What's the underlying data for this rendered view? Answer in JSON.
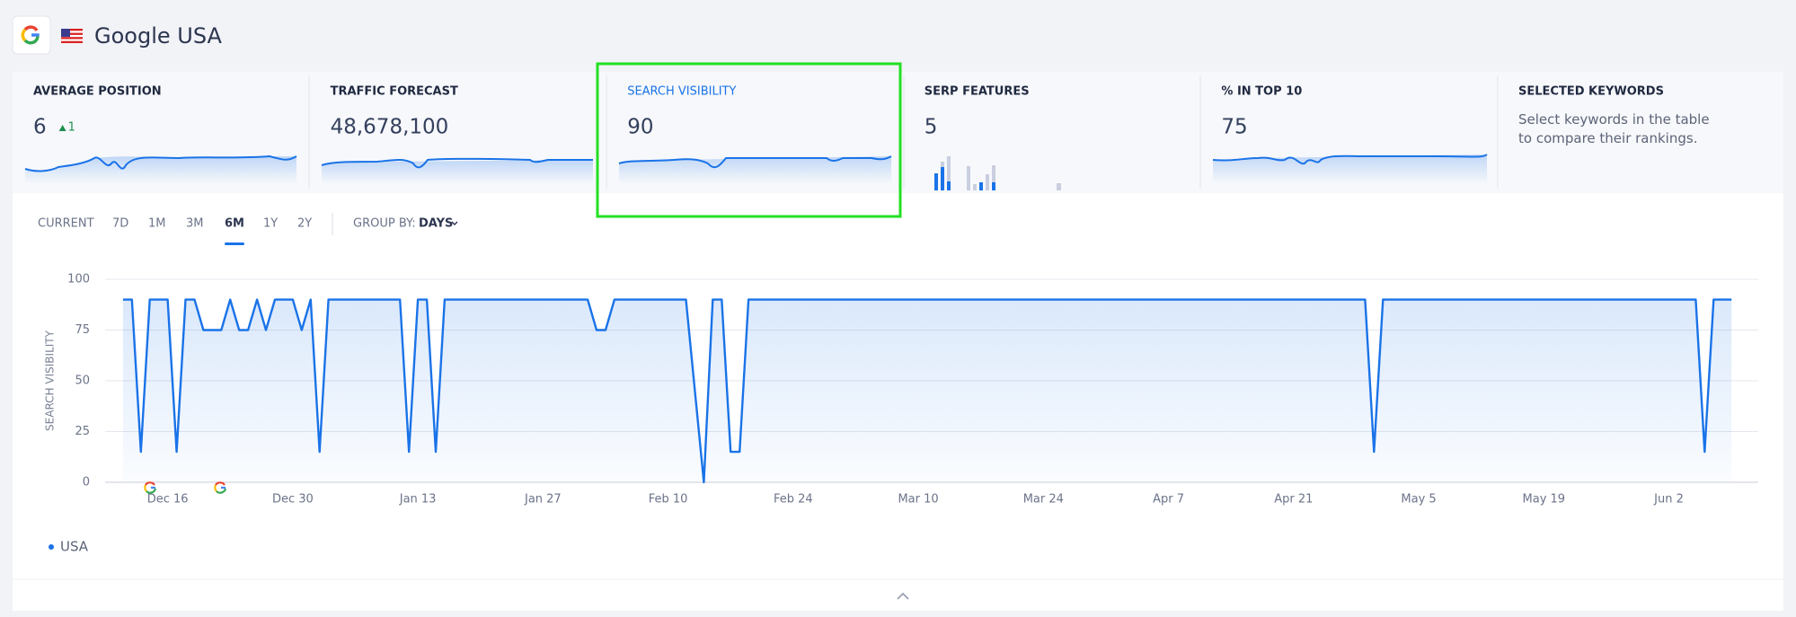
{
  "header": {
    "title": "Google USA"
  },
  "metrics": [
    {
      "label": "AVERAGE POSITION",
      "value": "6",
      "change": "1"
    },
    {
      "label": "TRAFFIC FORECAST",
      "value": "48,678,100"
    },
    {
      "label": "SEARCH VISIBILITY",
      "value": "90"
    },
    {
      "label": "SERP FEATURES",
      "value": "5"
    },
    {
      "label": "% IN TOP 10",
      "value": "75"
    },
    {
      "label": "SELECTED KEYWORDS",
      "text": "Select keywords in the table to compare their rankings."
    }
  ],
  "controls": {
    "periods": [
      "CURRENT",
      "7D",
      "1M",
      "3M",
      "6M",
      "1Y",
      "2Y"
    ],
    "active_period": "6M",
    "group_by_label": "GROUP BY:",
    "group_by": "DAYS"
  },
  "chart_data": {
    "type": "line",
    "y_label": "SEARCH VISIBILITY",
    "xlim": [
      "Dec 9",
      "Jun 12"
    ],
    "ylim": [
      0,
      100
    ],
    "yticks": [
      0,
      25,
      50,
      75,
      100
    ],
    "xticks": [
      "Dec 16",
      "Dec 30",
      "Jan 13",
      "Jan 27",
      "Feb 10",
      "Feb 24",
      "Mar 10",
      "Mar 24",
      "Apr 7",
      "Apr 21",
      "May 5",
      "May 19",
      "Jun 2"
    ],
    "grid": true,
    "series": [
      {
        "name": "USA",
        "color": "#1a73e8",
        "x": [
          "Dec 11",
          "Dec 12",
          "Dec 13",
          "Dec 14",
          "Dec 16",
          "Dec 17",
          "Dec 18",
          "Dec 19",
          "Dec 20",
          "Dec 22",
          "Dec 23",
          "Dec 24",
          "Dec 25",
          "Dec 26",
          "Dec 27",
          "Dec 28",
          "Dec 30",
          "Dec 31",
          "Jan 1",
          "Jan 2",
          "Jan 3",
          "Jan 11",
          "Jan 12",
          "Jan 13",
          "Jan 14",
          "Jan 15",
          "Jan 16",
          "Feb 1",
          "Feb 2",
          "Feb 3",
          "Feb 4",
          "Feb 12",
          "Feb 14",
          "Feb 15",
          "Feb 16",
          "Feb 17",
          "Feb 18",
          "Feb 19",
          "Apr 29",
          "Apr 30",
          "May 1",
          "Jun 5",
          "Jun 6",
          "Jun 7",
          "Jun 9"
        ],
        "values": [
          90,
          90,
          15,
          90,
          90,
          15,
          90,
          90,
          75,
          75,
          90,
          75,
          75,
          90,
          75,
          90,
          90,
          75,
          90,
          15,
          90,
          90,
          15,
          90,
          90,
          15,
          90,
          90,
          75,
          75,
          90,
          90,
          0,
          90,
          90,
          15,
          15,
          90,
          90,
          15,
          90,
          90,
          15,
          90,
          90
        ]
      }
    ]
  }
}
